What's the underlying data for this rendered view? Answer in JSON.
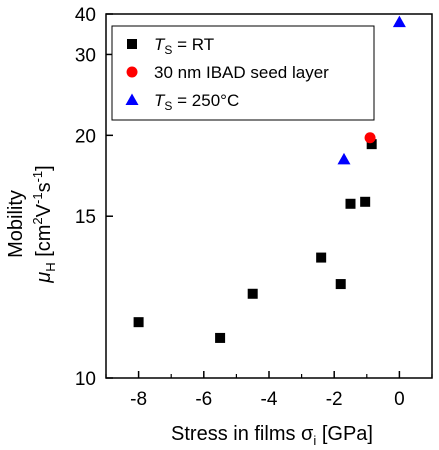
{
  "chart_data": {
    "type": "scatter",
    "xlabel": "Stress in films",
    "xlabel_symbol": "σ",
    "xlabel_sub": "i",
    "xlabel_unit": "[GPa]",
    "ylabel_line1": "Mobility",
    "ylabel_symbol": "μ",
    "ylabel_sub": "H",
    "ylabel_unit_open": "[cm",
    "ylabel_sup1": "2",
    "ylabel_mid": "V",
    "ylabel_sup2": "-1",
    "ylabel_end": "s",
    "ylabel_sup3": "-1",
    "ylabel_close": "]",
    "xlim": [
      -9,
      1
    ],
    "ylim": [
      10,
      40
    ],
    "yscale": "reciprocal",
    "xticks": [
      -8,
      -6,
      -4,
      -2,
      0
    ],
    "yticks": [
      10,
      15,
      20,
      30,
      40
    ],
    "grid": false,
    "legend_position": "top-left",
    "series": [
      {
        "name_prefix": "T",
        "name_sub": "S",
        "name_suffix": " = RT",
        "marker": "square",
        "color": "#000000",
        "points": [
          {
            "x": -8.0,
            "y": 11.3
          },
          {
            "x": -5.5,
            "y": 10.9
          },
          {
            "x": -4.5,
            "y": 12.1
          },
          {
            "x": -2.4,
            "y": 13.3
          },
          {
            "x": -1.8,
            "y": 12.4
          },
          {
            "x": -1.5,
            "y": 15.6
          },
          {
            "x": -1.05,
            "y": 15.7
          },
          {
            "x": -0.85,
            "y": 19.3
          }
        ]
      },
      {
        "name_prefix": "",
        "name_sub": "",
        "name_suffix": "30 nm IBAD seed layer",
        "marker": "circle",
        "color": "#ff0000",
        "points": [
          {
            "x": -0.9,
            "y": 19.8
          }
        ]
      },
      {
        "name_prefix": "T",
        "name_sub": "S",
        "name_suffix": " = 250°C",
        "marker": "triangle",
        "color": "#0000ff",
        "points": [
          {
            "x": -1.7,
            "y": 18.2
          },
          {
            "x": 0.0,
            "y": 37.5
          }
        ]
      }
    ]
  }
}
